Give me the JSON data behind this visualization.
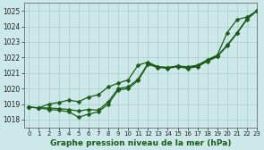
{
  "xlabel": "Graphe pression niveau de la mer (hPa)",
  "xlim": [
    -0.5,
    23
  ],
  "ylim": [
    1017.5,
    1025.5
  ],
  "yticks": [
    1018,
    1019,
    1020,
    1021,
    1022,
    1023,
    1024,
    1025
  ],
  "xticks": [
    0,
    1,
    2,
    3,
    4,
    5,
    6,
    7,
    8,
    9,
    10,
    11,
    12,
    13,
    14,
    15,
    16,
    17,
    18,
    19,
    20,
    21,
    22,
    23
  ],
  "bg_color": "#cce8e8",
  "grid_color": "#aacccc",
  "line_color": "#1a5c1a",
  "line1": [
    [
      0,
      1018.8
    ],
    [
      1,
      1018.75
    ],
    [
      2,
      1018.65
    ],
    [
      3,
      1018.6
    ],
    [
      4,
      1018.5
    ],
    [
      5,
      1018.15
    ],
    [
      6,
      1018.35
    ],
    [
      7,
      1018.5
    ],
    [
      8,
      1019.0
    ],
    [
      9,
      1019.9
    ],
    [
      10,
      1020.0
    ],
    [
      11,
      1020.5
    ],
    [
      12,
      1021.55
    ],
    [
      13,
      1021.35
    ],
    [
      14,
      1021.3
    ],
    [
      15,
      1021.4
    ],
    [
      16,
      1021.3
    ],
    [
      17,
      1021.4
    ],
    [
      18,
      1021.75
    ],
    [
      19,
      1022.05
    ],
    [
      20,
      1022.75
    ],
    [
      21,
      1023.55
    ],
    [
      22,
      1024.45
    ],
    [
      23,
      1025.0
    ]
  ],
  "line2": [
    [
      0,
      1018.8
    ],
    [
      1,
      1018.75
    ],
    [
      2,
      1018.75
    ],
    [
      3,
      1018.7
    ],
    [
      4,
      1018.65
    ],
    [
      5,
      1018.55
    ],
    [
      6,
      1018.65
    ],
    [
      7,
      1018.6
    ],
    [
      8,
      1019.15
    ],
    [
      9,
      1020.0
    ],
    [
      10,
      1020.1
    ],
    [
      11,
      1020.6
    ],
    [
      12,
      1021.6
    ],
    [
      13,
      1021.4
    ],
    [
      14,
      1021.35
    ],
    [
      15,
      1021.45
    ],
    [
      16,
      1021.35
    ],
    [
      17,
      1021.45
    ],
    [
      18,
      1021.8
    ],
    [
      19,
      1022.1
    ],
    [
      20,
      1022.8
    ],
    [
      21,
      1023.6
    ],
    [
      22,
      1024.5
    ],
    [
      23,
      1025.0
    ]
  ],
  "line3": [
    [
      0,
      1018.8
    ],
    [
      1,
      1018.75
    ],
    [
      2,
      1019.0
    ],
    [
      3,
      1019.1
    ],
    [
      4,
      1019.25
    ],
    [
      5,
      1019.15
    ],
    [
      6,
      1019.45
    ],
    [
      7,
      1019.6
    ],
    [
      8,
      1020.1
    ],
    [
      9,
      1020.35
    ],
    [
      10,
      1020.55
    ],
    [
      11,
      1021.5
    ],
    [
      12,
      1021.7
    ],
    [
      13,
      1021.4
    ],
    [
      14,
      1021.35
    ],
    [
      15,
      1021.45
    ],
    [
      16,
      1021.4
    ],
    [
      17,
      1021.5
    ],
    [
      18,
      1021.85
    ],
    [
      19,
      1022.15
    ],
    [
      20,
      1023.6
    ],
    [
      21,
      1024.45
    ],
    [
      22,
      1024.6
    ],
    [
      23,
      1025.0
    ]
  ]
}
